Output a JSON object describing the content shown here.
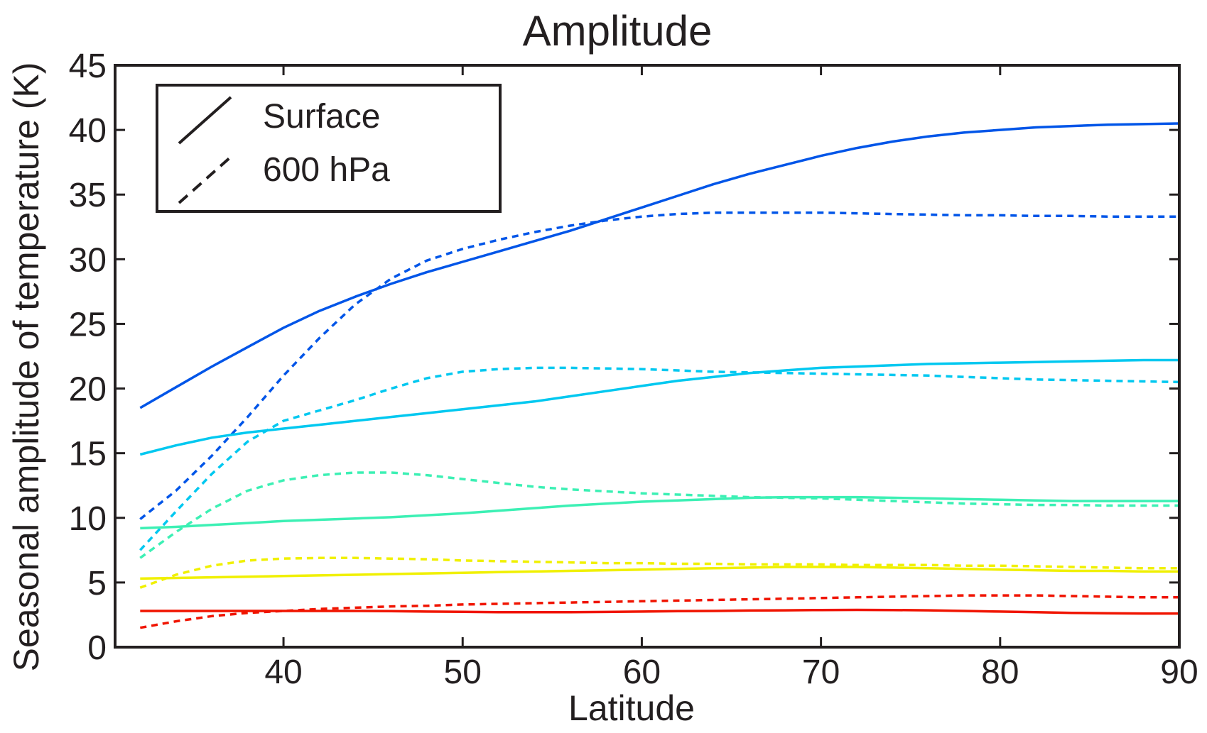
{
  "chart_data": {
    "type": "line",
    "title": "Amplitude",
    "xlabel": "Latitude",
    "ylabel": "Seasonal amplitude of temperature (K)",
    "xlim": [
      30.6,
      90
    ],
    "ylim": [
      0,
      45
    ],
    "xticks": [
      40,
      50,
      60,
      70,
      80,
      90
    ],
    "yticks": [
      0,
      5,
      10,
      15,
      20,
      25,
      30,
      35,
      40,
      45
    ],
    "grid": false,
    "legend": {
      "position": "top-left",
      "entries": [
        {
          "label": "Surface",
          "style": "solid"
        },
        {
          "label": "600 hPa",
          "style": "dashed"
        }
      ]
    },
    "series": [
      {
        "color": "#0055e8",
        "style": "solid",
        "x": [
          32,
          34,
          36,
          38,
          40,
          42,
          44,
          46,
          48,
          50,
          52,
          54,
          56,
          58,
          60,
          62,
          64,
          66,
          68,
          70,
          72,
          74,
          76,
          78,
          80,
          82,
          84,
          86,
          88,
          90
        ],
        "y": [
          18.5,
          20.1,
          21.7,
          23.2,
          24.7,
          26.0,
          27.1,
          28.1,
          29.0,
          29.8,
          30.6,
          31.4,
          32.2,
          33.1,
          34.0,
          34.9,
          35.8,
          36.6,
          37.3,
          38.0,
          38.6,
          39.1,
          39.5,
          39.8,
          40.0,
          40.2,
          40.3,
          40.4,
          40.45,
          40.5
        ]
      },
      {
        "color": "#0055e8",
        "style": "dashed",
        "x": [
          32,
          34,
          36,
          38,
          40,
          42,
          44,
          46,
          48,
          50,
          52,
          54,
          56,
          58,
          60,
          62,
          64,
          66,
          68,
          70,
          72,
          74,
          76,
          78,
          80,
          82,
          84,
          86,
          88,
          90
        ],
        "y": [
          9.9,
          12.1,
          14.8,
          17.8,
          21.0,
          23.9,
          26.5,
          28.5,
          29.9,
          30.8,
          31.5,
          32.1,
          32.6,
          33.0,
          33.3,
          33.5,
          33.6,
          33.6,
          33.6,
          33.6,
          33.55,
          33.5,
          33.45,
          33.4,
          33.4,
          33.35,
          33.35,
          33.3,
          33.3,
          33.3
        ]
      },
      {
        "color": "#00c8f0",
        "style": "solid",
        "x": [
          32,
          34,
          36,
          38,
          40,
          42,
          44,
          46,
          48,
          50,
          52,
          54,
          56,
          58,
          60,
          62,
          64,
          66,
          68,
          70,
          72,
          74,
          76,
          78,
          80,
          82,
          84,
          86,
          88,
          90
        ],
        "y": [
          14.9,
          15.6,
          16.2,
          16.6,
          16.9,
          17.2,
          17.5,
          17.8,
          18.1,
          18.4,
          18.7,
          19.0,
          19.4,
          19.8,
          20.2,
          20.6,
          20.9,
          21.2,
          21.4,
          21.6,
          21.7,
          21.8,
          21.9,
          21.95,
          22.0,
          22.05,
          22.1,
          22.15,
          22.2,
          22.2
        ]
      },
      {
        "color": "#00c8f0",
        "style": "dashed",
        "x": [
          32,
          34,
          36,
          38,
          40,
          42,
          44,
          46,
          48,
          50,
          52,
          54,
          56,
          58,
          60,
          62,
          64,
          66,
          68,
          70,
          72,
          74,
          76,
          78,
          80,
          82,
          84,
          86,
          88,
          90
        ],
        "y": [
          7.5,
          10.5,
          13.4,
          15.9,
          17.5,
          18.3,
          19.1,
          20.0,
          20.8,
          21.3,
          21.5,
          21.6,
          21.6,
          21.55,
          21.5,
          21.4,
          21.3,
          21.25,
          21.2,
          21.15,
          21.1,
          21.05,
          21.0,
          20.9,
          20.8,
          20.7,
          20.65,
          20.6,
          20.55,
          20.5
        ]
      },
      {
        "color": "#3cf0b4",
        "style": "solid",
        "x": [
          32,
          34,
          36,
          38,
          40,
          42,
          44,
          46,
          48,
          50,
          52,
          54,
          56,
          58,
          60,
          62,
          64,
          66,
          68,
          70,
          72,
          74,
          76,
          78,
          80,
          82,
          84,
          86,
          88,
          90
        ],
        "y": [
          9.2,
          9.3,
          9.45,
          9.6,
          9.75,
          9.85,
          9.95,
          10.05,
          10.2,
          10.35,
          10.55,
          10.75,
          10.95,
          11.1,
          11.25,
          11.35,
          11.45,
          11.55,
          11.6,
          11.6,
          11.6,
          11.55,
          11.5,
          11.45,
          11.4,
          11.35,
          11.3,
          11.3,
          11.3,
          11.3
        ]
      },
      {
        "color": "#3cf0b4",
        "style": "dashed",
        "x": [
          32,
          34,
          36,
          38,
          40,
          42,
          44,
          46,
          48,
          50,
          52,
          54,
          56,
          58,
          60,
          62,
          64,
          66,
          68,
          70,
          72,
          74,
          76,
          78,
          80,
          82,
          84,
          86,
          88,
          90
        ],
        "y": [
          6.9,
          8.9,
          10.7,
          12.1,
          12.9,
          13.3,
          13.5,
          13.5,
          13.3,
          13.0,
          12.7,
          12.4,
          12.2,
          12.05,
          11.9,
          11.8,
          11.7,
          11.6,
          11.55,
          11.5,
          11.4,
          11.3,
          11.2,
          11.1,
          11.05,
          11.0,
          11.0,
          10.95,
          10.95,
          10.95
        ]
      },
      {
        "color": "#f0f000",
        "style": "solid",
        "x": [
          32,
          34,
          36,
          38,
          40,
          42,
          44,
          46,
          48,
          50,
          52,
          54,
          56,
          58,
          60,
          62,
          64,
          66,
          68,
          70,
          72,
          74,
          76,
          78,
          80,
          82,
          84,
          86,
          88,
          90
        ],
        "y": [
          5.3,
          5.35,
          5.4,
          5.45,
          5.5,
          5.55,
          5.6,
          5.65,
          5.7,
          5.75,
          5.8,
          5.85,
          5.9,
          5.95,
          6.0,
          6.05,
          6.1,
          6.15,
          6.2,
          6.2,
          6.2,
          6.15,
          6.1,
          6.05,
          6.0,
          5.95,
          5.9,
          5.9,
          5.85,
          5.85
        ]
      },
      {
        "color": "#f0f000",
        "style": "dashed",
        "x": [
          32,
          34,
          36,
          38,
          40,
          42,
          44,
          46,
          48,
          50,
          52,
          54,
          56,
          58,
          60,
          62,
          64,
          66,
          68,
          70,
          72,
          74,
          76,
          78,
          80,
          82,
          84,
          86,
          88,
          90
        ],
        "y": [
          4.6,
          5.6,
          6.3,
          6.7,
          6.85,
          6.9,
          6.9,
          6.85,
          6.8,
          6.7,
          6.65,
          6.6,
          6.55,
          6.5,
          6.5,
          6.45,
          6.45,
          6.4,
          6.4,
          6.4,
          6.35,
          6.35,
          6.35,
          6.3,
          6.3,
          6.25,
          6.2,
          6.15,
          6.1,
          6.1
        ]
      },
      {
        "color": "#f01400",
        "style": "solid",
        "x": [
          32,
          34,
          36,
          38,
          40,
          42,
          44,
          46,
          48,
          50,
          52,
          54,
          56,
          58,
          60,
          62,
          64,
          66,
          68,
          70,
          72,
          74,
          76,
          78,
          80,
          82,
          84,
          86,
          88,
          90
        ],
        "y": [
          2.8,
          2.8,
          2.8,
          2.8,
          2.8,
          2.8,
          2.8,
          2.78,
          2.75,
          2.73,
          2.7,
          2.7,
          2.7,
          2.72,
          2.75,
          2.78,
          2.8,
          2.83,
          2.85,
          2.87,
          2.88,
          2.87,
          2.85,
          2.8,
          2.75,
          2.7,
          2.65,
          2.62,
          2.6,
          2.6
        ]
      },
      {
        "color": "#f01400",
        "style": "dashed",
        "x": [
          32,
          34,
          36,
          38,
          40,
          42,
          44,
          46,
          48,
          50,
          52,
          54,
          56,
          58,
          60,
          62,
          64,
          66,
          68,
          70,
          72,
          74,
          76,
          78,
          80,
          82,
          84,
          86,
          88,
          90
        ],
        "y": [
          1.5,
          2.0,
          2.4,
          2.65,
          2.8,
          2.95,
          3.05,
          3.15,
          3.2,
          3.3,
          3.35,
          3.4,
          3.45,
          3.5,
          3.55,
          3.6,
          3.65,
          3.7,
          3.75,
          3.8,
          3.85,
          3.9,
          3.95,
          4.0,
          4.0,
          4.0,
          3.95,
          3.9,
          3.85,
          3.85
        ]
      }
    ]
  }
}
